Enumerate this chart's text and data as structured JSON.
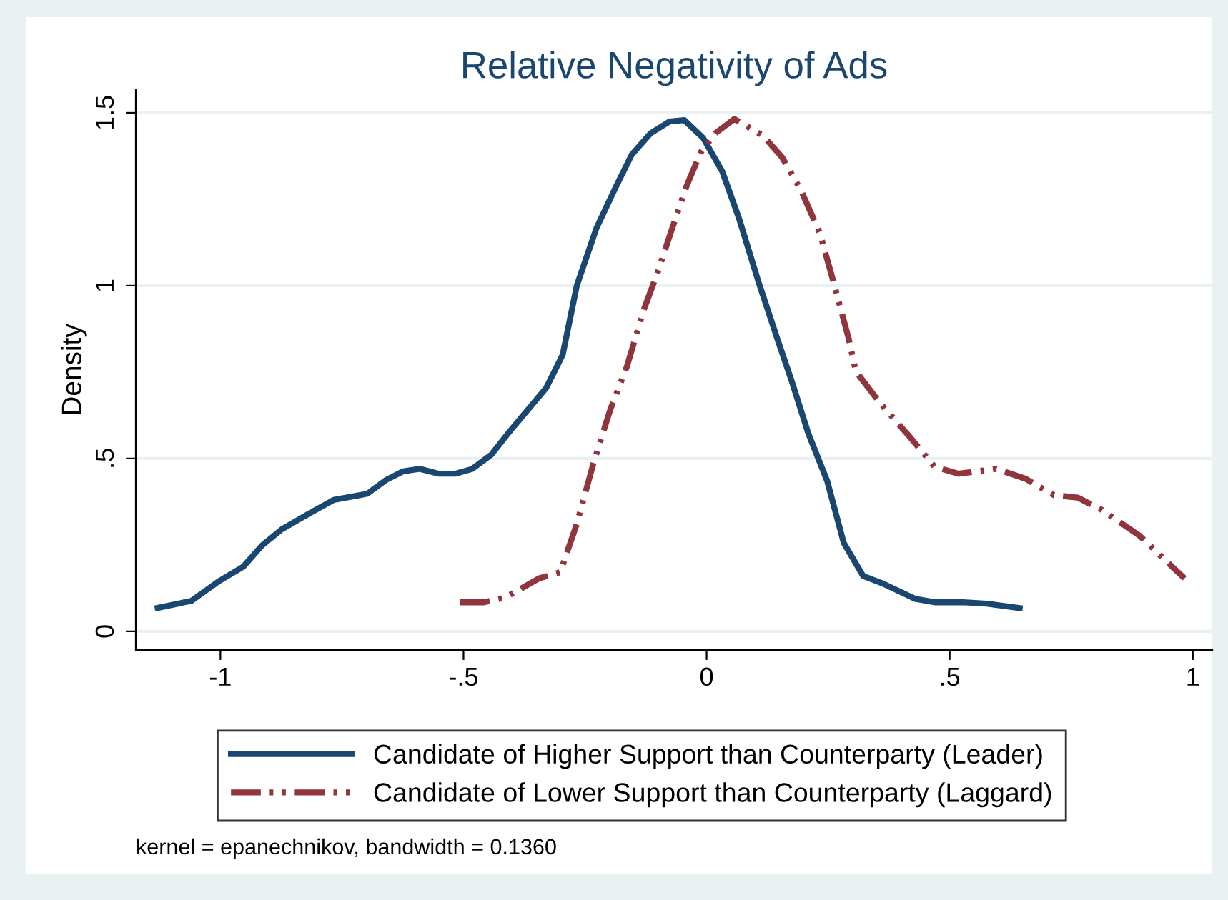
{
  "chart_data": {
    "type": "line",
    "title": "Relative Negativity of Ads",
    "ylabel": "Density",
    "series": [
      {
        "name": "Candidate of Higher Support than Counterparty (Leader)",
        "color": "#1a476f",
        "line_style": "solid",
        "x": [
          -1.135,
          -1.06,
          -1.002,
          -0.953,
          -0.914,
          -0.874,
          -0.816,
          -0.767,
          -0.698,
          -0.659,
          -0.624,
          -0.59,
          -0.551,
          -0.517,
          -0.482,
          -0.443,
          -0.404,
          -0.33,
          -0.296,
          -0.267,
          -0.227,
          -0.188,
          -0.154,
          -0.115,
          -0.076,
          -0.046,
          -0.007,
          0.032,
          0.067,
          0.106,
          0.145,
          0.175,
          0.209,
          0.248,
          0.282,
          0.322,
          0.361,
          0.429,
          0.469,
          0.527,
          0.576,
          0.65
        ],
        "values": [
          0.066,
          0.088,
          0.146,
          0.187,
          0.249,
          0.295,
          0.342,
          0.38,
          0.398,
          0.438,
          0.463,
          0.47,
          0.456,
          0.456,
          0.47,
          0.511,
          0.58,
          0.704,
          0.8,
          1.0,
          1.165,
          1.282,
          1.379,
          1.441,
          1.475,
          1.479,
          1.427,
          1.331,
          1.193,
          1.014,
          0.848,
          0.724,
          0.573,
          0.435,
          0.256,
          0.16,
          0.139,
          0.094,
          0.084,
          0.084,
          0.08,
          0.066
        ]
      },
      {
        "name": "Candidate of Lower Support than Counterparty (Laggard)",
        "color": "#90353b",
        "line_style": "dashed",
        "x": [
          -0.507,
          -0.458,
          -0.414,
          -0.345,
          -0.301,
          -0.267,
          -0.232,
          -0.198,
          -0.164,
          -0.129,
          -0.1,
          -0.071,
          -0.041,
          -0.012,
          0.018,
          0.057,
          0.116,
          0.155,
          0.194,
          0.233,
          0.263,
          0.292,
          0.307,
          0.356,
          0.42,
          0.469,
          0.518,
          0.596,
          0.655,
          0.714,
          0.763,
          0.812,
          0.89,
          0.983
        ],
        "values": [
          0.084,
          0.084,
          0.098,
          0.153,
          0.171,
          0.311,
          0.49,
          0.642,
          0.766,
          0.931,
          1.041,
          1.165,
          1.289,
          1.386,
          1.441,
          1.482,
          1.434,
          1.372,
          1.276,
          1.152,
          1.0,
          0.848,
          0.752,
          0.662,
          0.559,
          0.476,
          0.456,
          0.47,
          0.442,
          0.394,
          0.387,
          0.352,
          0.277,
          0.153
        ]
      }
    ],
    "xlim": [
      -1.174,
      1.04
    ],
    "ylim": [
      -0.054,
      1.566
    ],
    "xticks": [
      {
        "value": -1,
        "label": "-1"
      },
      {
        "value": -0.5,
        "label": "-.5"
      },
      0,
      {
        "value": 0.5,
        "label": ".5"
      },
      1
    ],
    "yticks": [
      0,
      {
        "value": 0.5,
        "label": ".5"
      },
      1,
      1.5
    ],
    "grid": "y",
    "legend": "bottom",
    "marker": "none",
    "annotations": [
      "kernel = epanechnikov, bandwidth = 0.1360"
    ]
  }
}
